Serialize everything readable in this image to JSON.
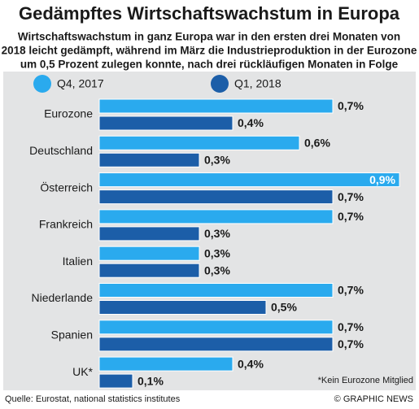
{
  "chart_data": {
    "type": "bar",
    "orientation": "horizontal",
    "title": "Gedämpftes Wirtschaftswachstum in Europa",
    "subtitle": [
      "Wirtschaftswachstum in ganz Europa war in den ersten drei Monaten von",
      "2018 leicht gedämpft, während im März die Industrieproduktion in der Eurozone",
      "um 0,5 Prozent zulegen konnte, nach drei rückläufigen Monaten in Folge"
    ],
    "categories": [
      "Eurozone",
      "Deutschland",
      "Österreich",
      "Frankreich",
      "Italien",
      "Niederlande",
      "Spanien",
      "UK*"
    ],
    "series": [
      {
        "name": "Q4, 2017",
        "color": "#2aaaee",
        "values": [
          0.7,
          0.6,
          0.9,
          0.7,
          0.3,
          0.7,
          0.7,
          0.4
        ],
        "value_labels": [
          "0,7%",
          "0,6%",
          "0,9%",
          "0,7%",
          "0,3%",
          "0,7%",
          "0,7%",
          "0,4%"
        ]
      },
      {
        "name": "Q1, 2018",
        "color": "#1c5ea8",
        "values": [
          0.4,
          0.3,
          0.7,
          0.3,
          0.3,
          0.5,
          0.7,
          0.1
        ],
        "value_labels": [
          "0,4%",
          "0,3%",
          "0,7%",
          "0,3%",
          "0,3%",
          "0,5%",
          "0,7%",
          "0,1%"
        ]
      }
    ],
    "footnote": "*Kein Eurozone Mitglied",
    "source": "Quelle: Eurostat, national statistics institutes",
    "credit": "© GRAPHIC NEWS"
  }
}
